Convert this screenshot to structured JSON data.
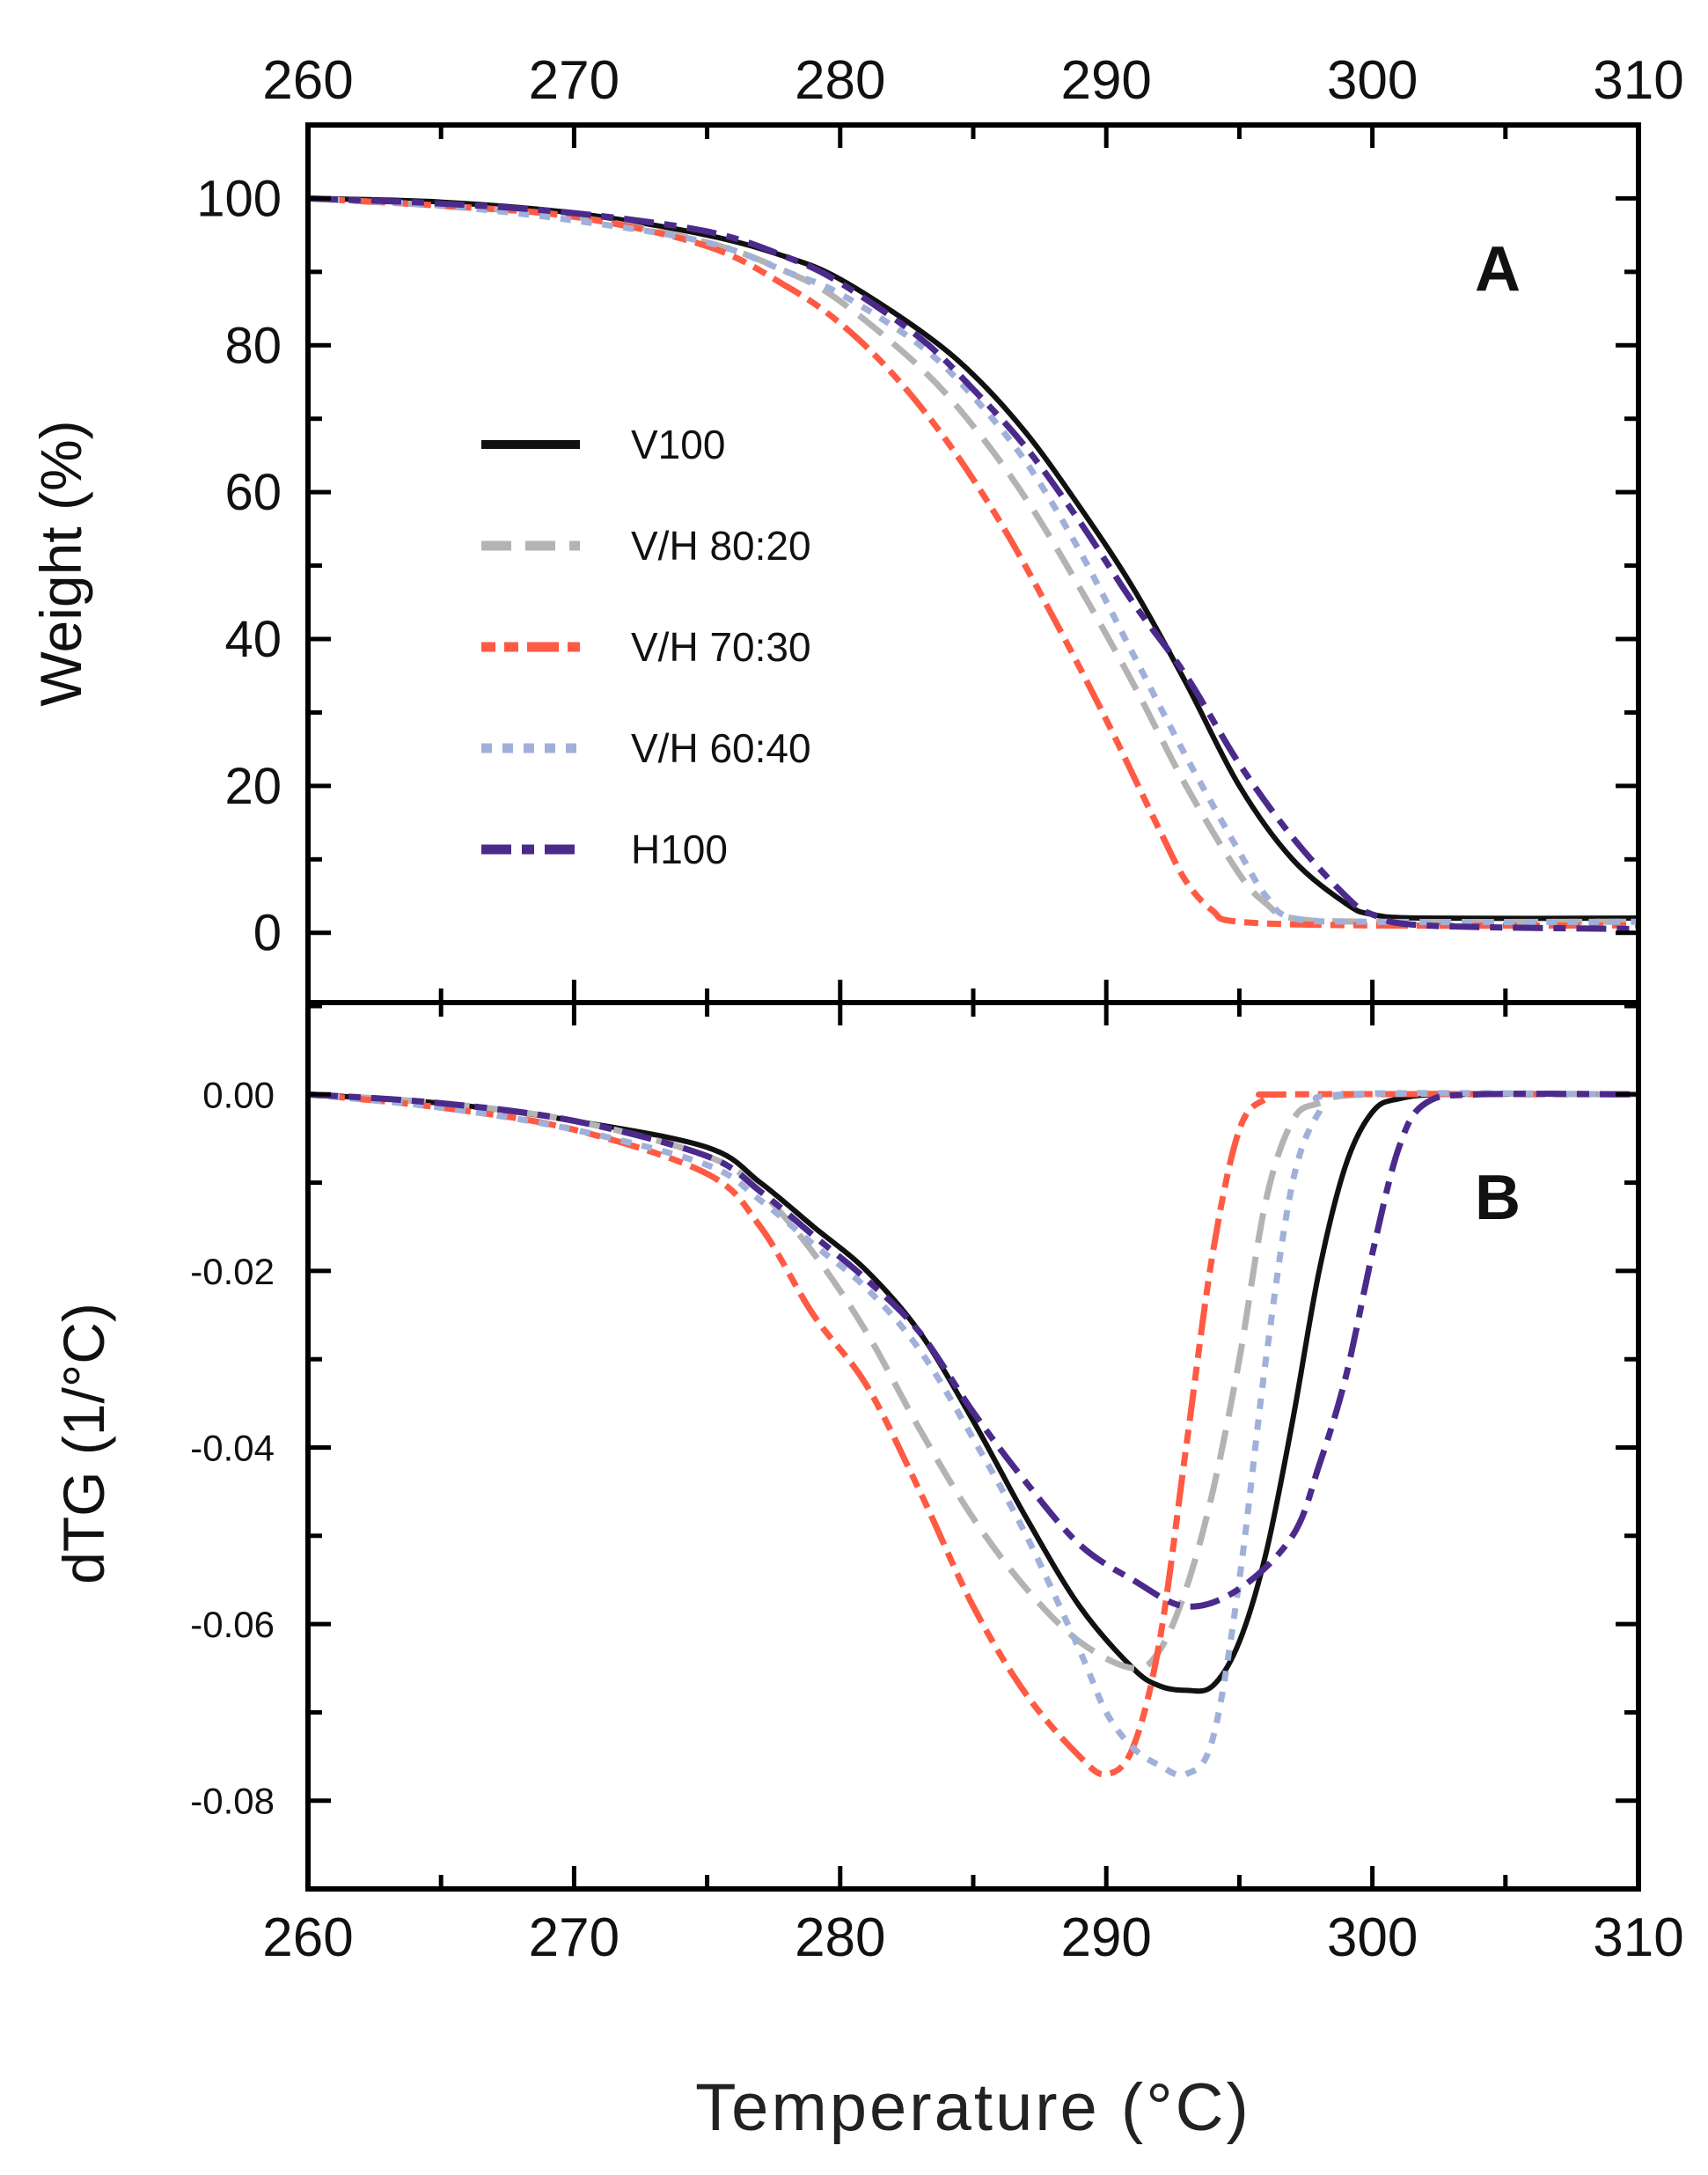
{
  "chart_data": [
    {
      "panel_label": "A",
      "type": "line",
      "xlabel": "Temperature (°C)",
      "ylabel": "Weight (%)",
      "xlim": [
        260,
        310
      ],
      "ylim": [
        -9.5,
        110
      ],
      "xticks": [
        "260",
        "270",
        "280",
        "290",
        "300",
        "310"
      ],
      "yticks": [
        "0",
        "20",
        "40",
        "60",
        "80",
        "100"
      ],
      "legend_position": "center-left",
      "series": [
        {
          "name": "V100",
          "color": "#111111",
          "dash": "solid",
          "x": [
            260,
            265,
            270,
            275,
            278,
            280,
            283,
            285,
            287,
            289,
            291,
            293,
            295,
            297,
            299,
            300,
            302,
            310
          ],
          "y": [
            100,
            99.5,
            98,
            95,
            92,
            89,
            82,
            76,
            68,
            58,
            47,
            34,
            20,
            10,
            4,
            2.5,
            2,
            2
          ]
        },
        {
          "name": "V/H 80:20",
          "color": "#b3b3b3",
          "dash": "long-dash",
          "x": [
            260,
            265,
            270,
            275,
            278,
            280,
            283,
            285,
            287,
            289,
            291,
            293,
            295,
            296,
            297,
            300,
            310
          ],
          "y": [
            100,
            99,
            97.5,
            94,
            90,
            86,
            77,
            69,
            59,
            47,
            34,
            20,
            8,
            4,
            2,
            1.5,
            1.5
          ]
        },
        {
          "name": "V/H 70:30",
          "color": "#ff5a44",
          "dash": "dash-dot-dot",
          "x": [
            260,
            265,
            270,
            275,
            278,
            280,
            282,
            284,
            286,
            288,
            290,
            292,
            293,
            294,
            295,
            300,
            310
          ],
          "y": [
            100,
            99,
            97.5,
            93.5,
            88,
            83,
            76,
            67,
            56,
            43,
            29,
            14,
            7,
            3,
            1.5,
            1,
            1
          ]
        },
        {
          "name": "V/H 60:40",
          "color": "#a0b0da",
          "dash": "dot",
          "x": [
            260,
            265,
            270,
            275,
            278,
            280,
            283,
            285,
            287,
            289,
            291,
            293,
            295,
            296,
            297,
            300,
            310
          ],
          "y": [
            100,
            99,
            97,
            94,
            90,
            87,
            80,
            73,
            64,
            52,
            38,
            24,
            11,
            5,
            2,
            1.5,
            1.5
          ]
        },
        {
          "name": "H100",
          "color": "#4b2a8c",
          "dash": "dash-dot",
          "x": [
            260,
            265,
            270,
            275,
            278,
            280,
            283,
            285,
            287,
            289,
            291,
            293,
            295,
            297,
            299,
            300,
            302,
            310
          ],
          "y": [
            100,
            99.3,
            98,
            95.5,
            92,
            88.5,
            81,
            74,
            66,
            56,
            45,
            35,
            23,
            13,
            5,
            2.5,
            1,
            0.5
          ]
        }
      ]
    },
    {
      "panel_label": "B",
      "type": "line",
      "xlabel": "Temperature (°C)",
      "ylabel": "dTG (1/°C)",
      "xlim": [
        260,
        310
      ],
      "ylim": [
        -0.09,
        0.0104
      ],
      "xticks": [
        "260",
        "270",
        "280",
        "290",
        "300",
        "310"
      ],
      "yticks": [
        "0.00",
        "-0.02",
        "-0.04",
        "-0.06",
        "-0.08"
      ],
      "series": [
        {
          "name": "V100",
          "color": "#111111",
          "dash": "solid",
          "x": [
            260,
            265,
            270,
            275,
            277,
            279,
            281,
            283,
            285,
            287,
            289,
            291,
            292,
            293,
            294,
            295,
            296,
            297,
            298,
            299,
            300,
            301,
            303,
            310
          ],
          "y": [
            0,
            -0.001,
            -0.003,
            -0.006,
            -0.01,
            -0.015,
            -0.02,
            -0.027,
            -0.037,
            -0.048,
            -0.058,
            -0.065,
            -0.067,
            -0.0675,
            -0.067,
            -0.062,
            -0.052,
            -0.037,
            -0.02,
            -0.008,
            -0.002,
            -0.0005,
            0,
            0
          ]
        },
        {
          "name": "V/H 80:20",
          "color": "#b3b3b3",
          "dash": "long-dash",
          "x": [
            260,
            265,
            270,
            275,
            277,
            279,
            281,
            283,
            285,
            287,
            289,
            291,
            292,
            293,
            294,
            295,
            296,
            297,
            298,
            300,
            310
          ],
          "y": [
            0,
            -0.001,
            -0.003,
            -0.007,
            -0.011,
            -0.018,
            -0.027,
            -0.038,
            -0.048,
            -0.056,
            -0.062,
            -0.065,
            -0.063,
            -0.056,
            -0.045,
            -0.03,
            -0.012,
            -0.003,
            -0.001,
            0,
            0
          ]
        },
        {
          "name": "V/H 70:30",
          "color": "#ff5a44",
          "dash": "dash-dot-dot",
          "x": [
            260,
            265,
            270,
            275,
            277,
            279,
            281,
            283,
            285,
            287,
            289,
            290,
            291,
            292,
            293,
            294,
            295,
            296,
            297,
            310
          ],
          "y": [
            0,
            -0.0015,
            -0.004,
            -0.009,
            -0.015,
            -0.025,
            -0.033,
            -0.045,
            -0.058,
            -0.068,
            -0.075,
            -0.077,
            -0.074,
            -0.062,
            -0.04,
            -0.018,
            -0.004,
            -0.0005,
            0,
            0
          ]
        },
        {
          "name": "V/H 60:40",
          "color": "#a0b0da",
          "dash": "dot",
          "x": [
            260,
            265,
            270,
            275,
            277,
            279,
            281,
            283,
            285,
            287,
            289,
            290,
            291,
            292,
            293,
            294,
            295,
            296,
            297,
            298,
            299,
            310
          ],
          "y": [
            0,
            -0.0015,
            -0.004,
            -0.008,
            -0.012,
            -0.017,
            -0.022,
            -0.029,
            -0.039,
            -0.05,
            -0.063,
            -0.07,
            -0.074,
            -0.076,
            -0.077,
            -0.073,
            -0.055,
            -0.03,
            -0.01,
            -0.002,
            0,
            0
          ]
        },
        {
          "name": "H100",
          "color": "#4b2a8c",
          "dash": "dash-dot",
          "x": [
            260,
            265,
            270,
            275,
            277,
            279,
            281,
            283,
            285,
            287,
            289,
            291,
            293,
            295,
            297,
            298,
            299,
            300,
            301,
            302,
            304,
            310
          ],
          "y": [
            0,
            -0.001,
            -0.003,
            -0.007,
            -0.011,
            -0.016,
            -0.021,
            -0.027,
            -0.036,
            -0.044,
            -0.051,
            -0.055,
            -0.058,
            -0.056,
            -0.05,
            -0.042,
            -0.032,
            -0.018,
            -0.006,
            -0.001,
            0,
            0
          ]
        }
      ]
    }
  ]
}
